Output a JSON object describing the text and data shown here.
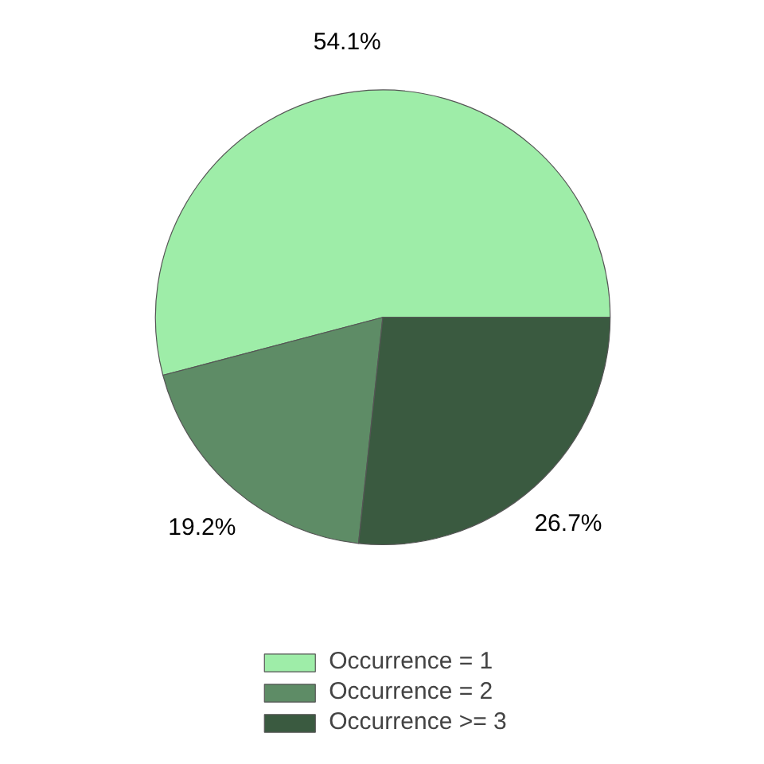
{
  "chart_data": {
    "type": "pie",
    "categories": [
      "Occurrence = 1",
      "Occurrence = 2",
      "Occurrence >= 3"
    ],
    "values": [
      54.1,
      19.2,
      26.7
    ],
    "colors": [
      "#9eeda8",
      "#5e8c66",
      "#3a5a40"
    ],
    "value_labels": [
      "54.1%",
      "19.2%",
      "26.7%"
    ],
    "legend": "bottom"
  }
}
